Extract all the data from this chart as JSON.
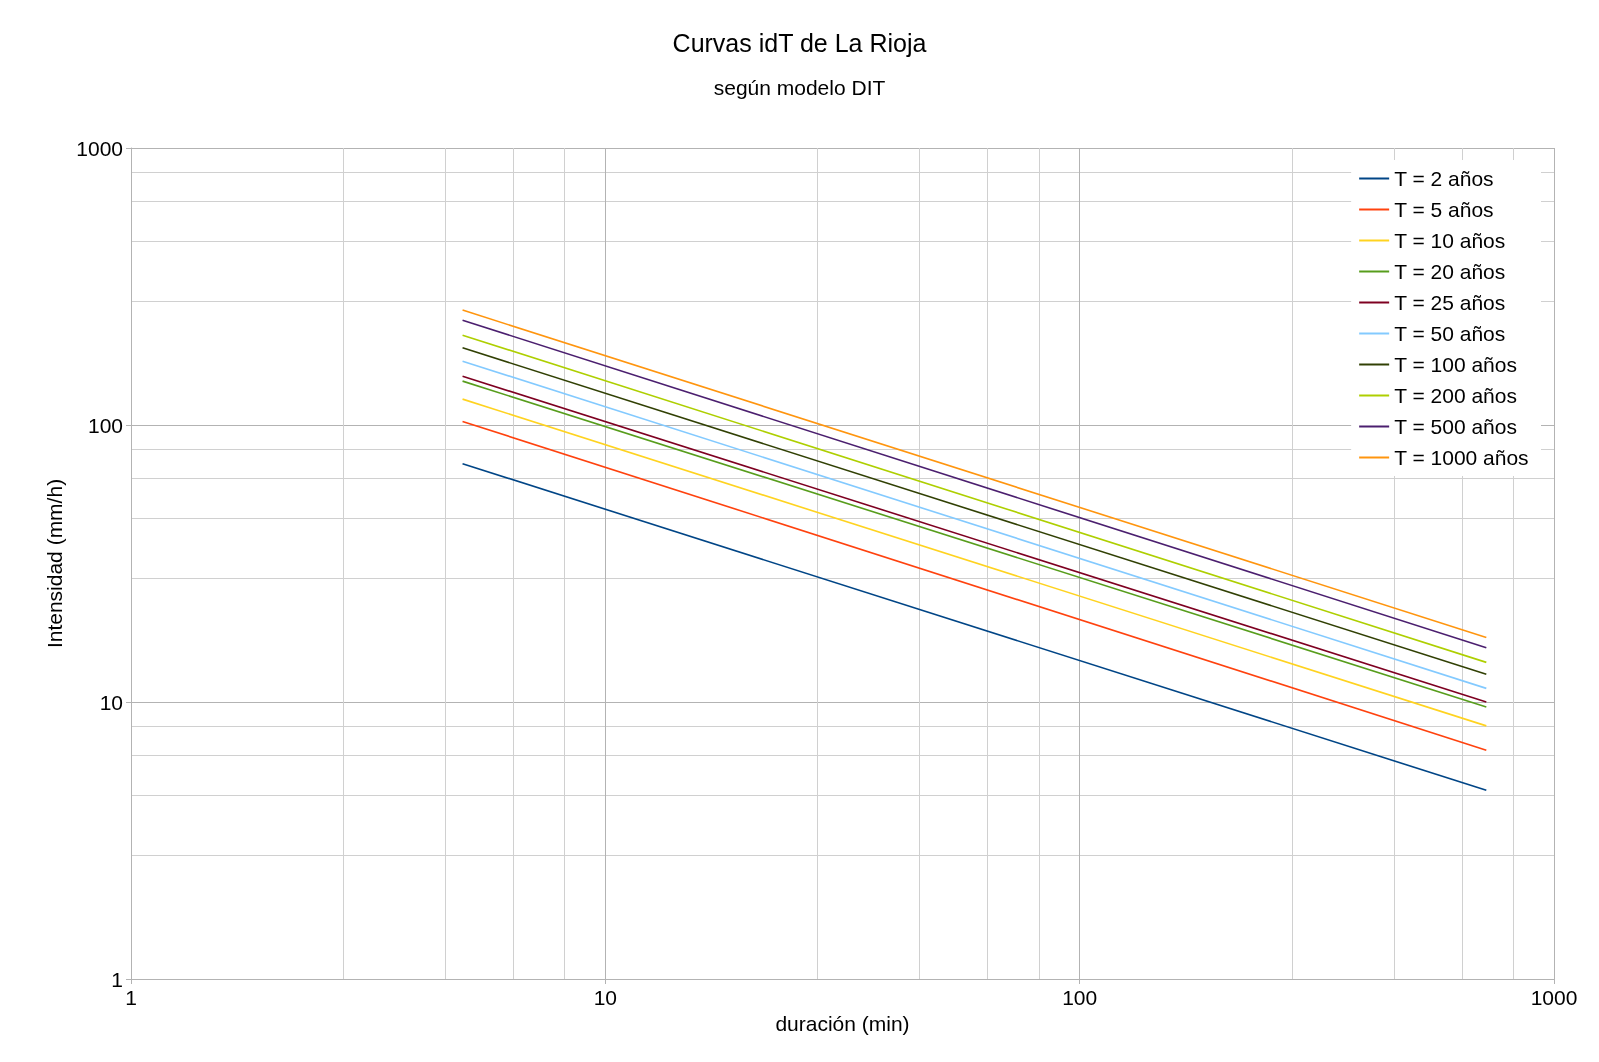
{
  "chart_data": {
    "type": "line",
    "title": "Curvas idT de La Rioja",
    "subtitle": "según modelo DIT",
    "xlabel": "duración (min)",
    "ylabel": "Intensidad (mm/h)",
    "x": [
      5,
      720
    ],
    "log": "xy",
    "xlim": [
      1,
      1000
    ],
    "xticks": [
      1,
      10,
      100,
      1000
    ],
    "ylim": [
      1,
      1000
    ],
    "yticks": [
      1,
      10,
      100,
      1000
    ],
    "grid": true,
    "legend": "top right",
    "marker": "none",
    "line_style": "solid",
    "series": [
      {
        "name": "T = 2 años",
        "color": "#004586",
        "values": [
          72.5,
          4.8
        ]
      },
      {
        "name": "T = 5 años",
        "color": "#ff420e",
        "values": [
          103,
          6.7
        ]
      },
      {
        "name": "T = 10 años",
        "color": "#ffd320",
        "values": [
          124,
          8.2
        ]
      },
      {
        "name": "T = 20 años",
        "color": "#579d1c",
        "values": [
          144,
          9.6
        ]
      },
      {
        "name": "T = 25 años",
        "color": "#7e0021",
        "values": [
          150,
          10
        ]
      },
      {
        "name": "T = 50 años",
        "color": "#83caff",
        "values": [
          170,
          11.2
        ]
      },
      {
        "name": "T = 100 años",
        "color": "#314004",
        "values": [
          190,
          12.6
        ]
      },
      {
        "name": "T = 200 años",
        "color": "#aecf00",
        "values": [
          211,
          13.9
        ]
      },
      {
        "name": "T = 500 años",
        "color": "#4b1f6f",
        "values": [
          239,
          15.7
        ]
      },
      {
        "name": "T = 1000 años",
        "color": "#ff950e",
        "values": [
          260,
          17.1
        ]
      }
    ]
  }
}
